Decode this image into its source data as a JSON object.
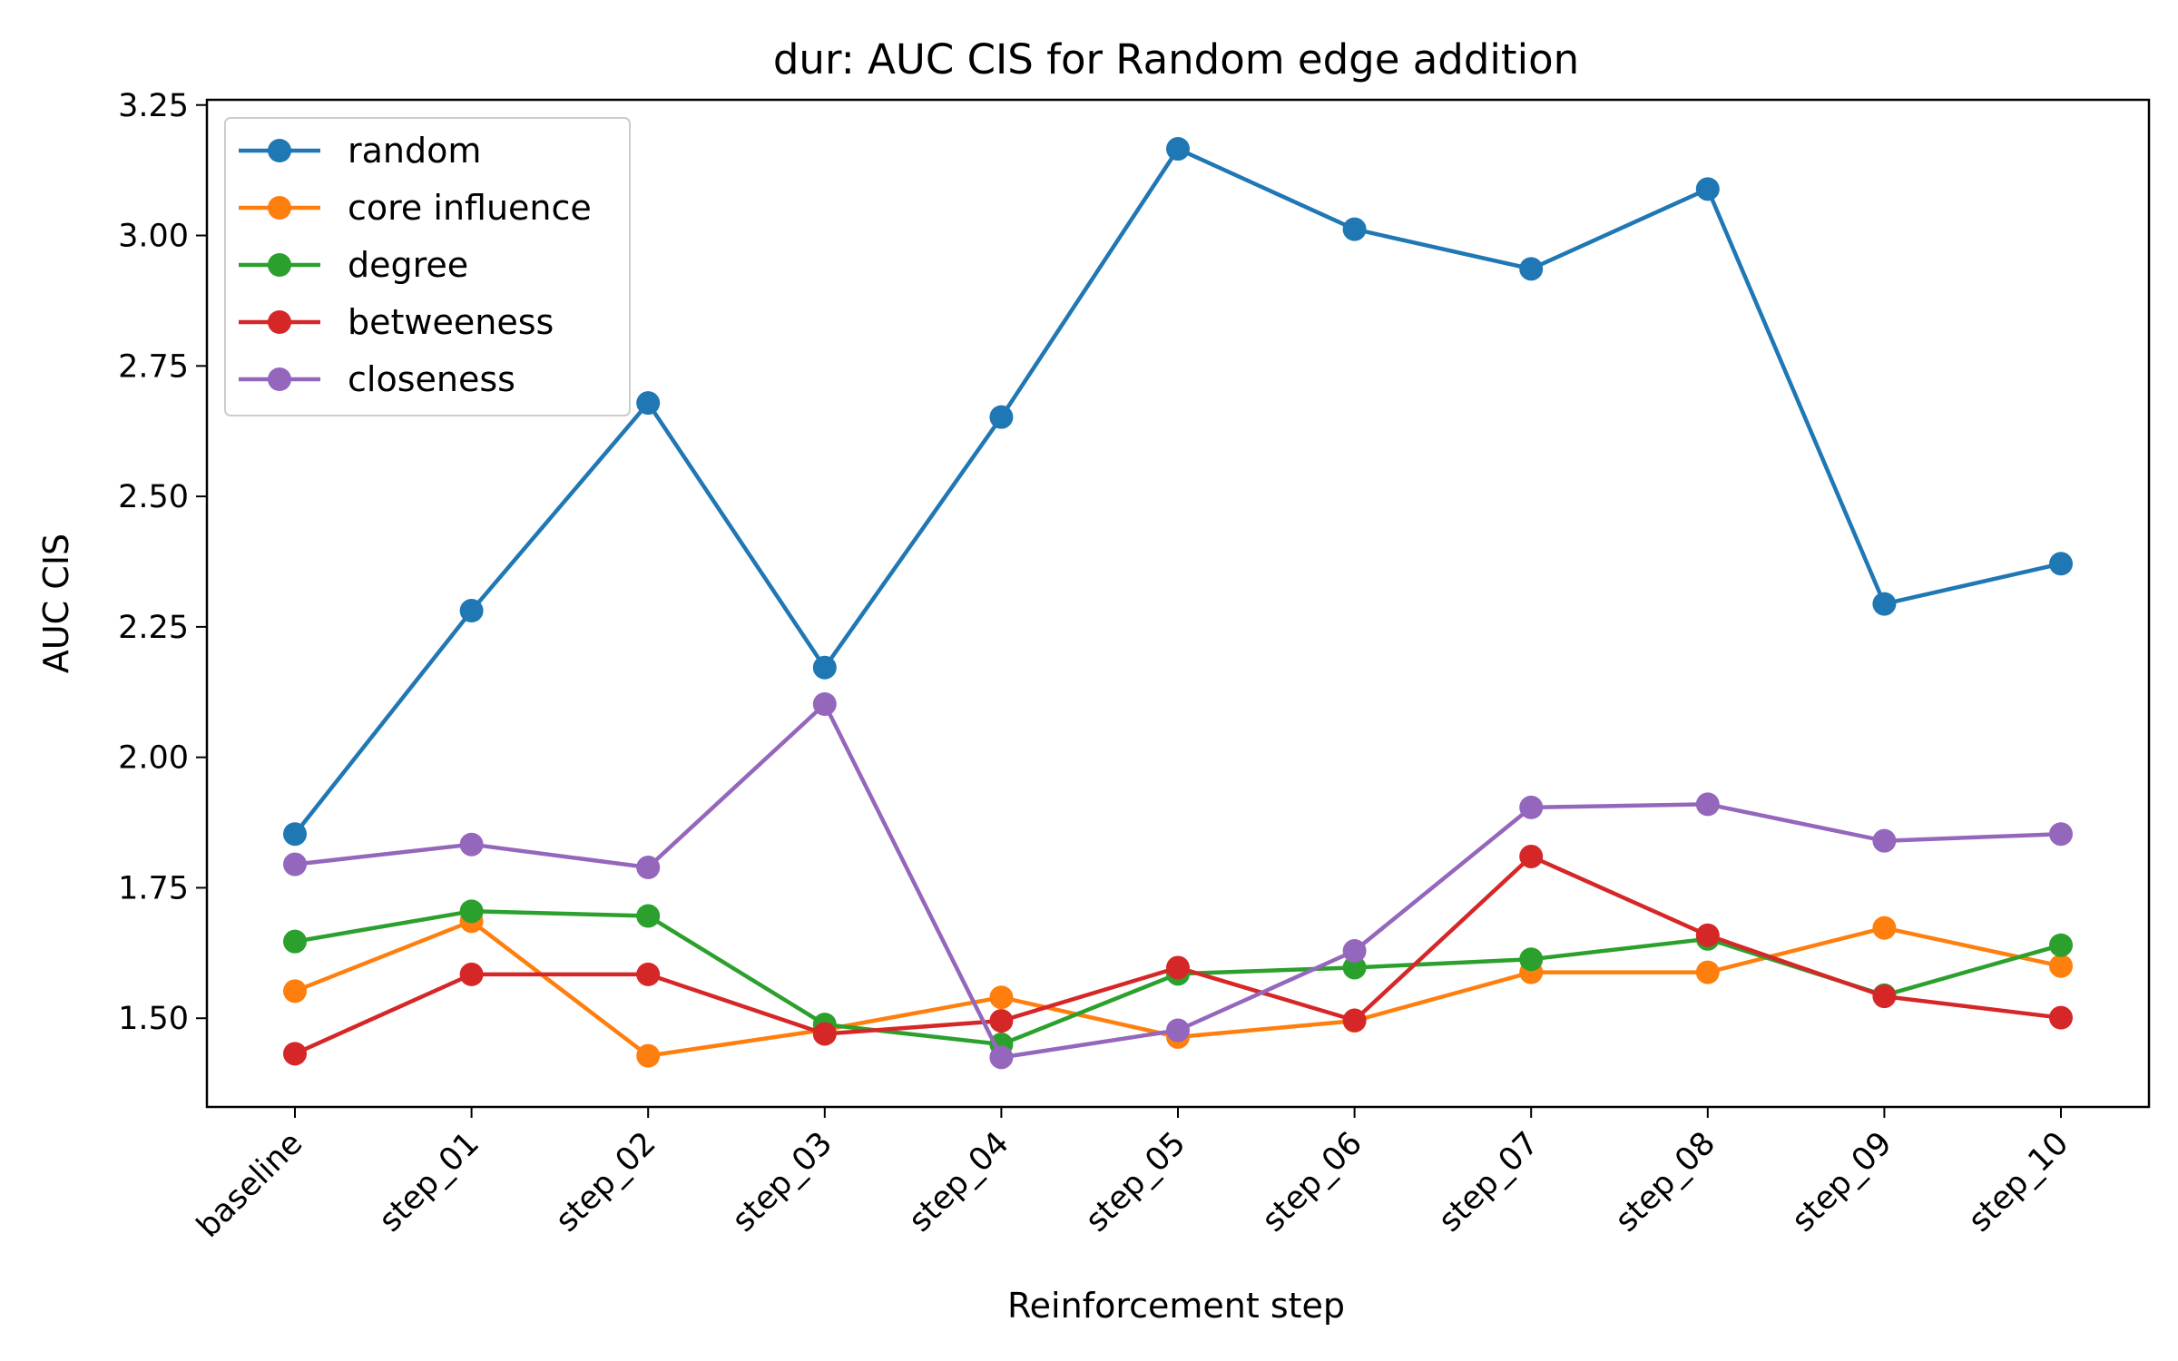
{
  "chart_data": {
    "type": "line",
    "title": "dur: AUC CIS for Random edge addition",
    "xlabel": "Reinforcement step",
    "ylabel": "AUC CIS",
    "categories": [
      "baseline",
      "step_01",
      "step_02",
      "step_03",
      "step_04",
      "step_05",
      "step_06",
      "step_07",
      "step_08",
      "step_09",
      "step_10"
    ],
    "ylim": [
      1.33,
      3.26
    ],
    "yticks": [
      "1.50",
      "1.75",
      "2.00",
      "2.25",
      "2.50",
      "2.75",
      "3.00",
      "3.25"
    ],
    "grid": false,
    "legend_position": "top-left",
    "series": [
      {
        "name": "random",
        "color": "#1f77b4",
        "values": [
          1.853,
          2.281,
          2.679,
          2.172,
          2.652,
          3.166,
          3.012,
          2.936,
          3.089,
          2.294,
          2.371
        ]
      },
      {
        "name": "core influence",
        "color": "#ff7f0e",
        "values": [
          1.552,
          1.686,
          1.428,
          1.478,
          1.54,
          1.464,
          1.495,
          1.588,
          1.588,
          1.673,
          1.6
        ]
      },
      {
        "name": "degree",
        "color": "#2ca02c",
        "values": [
          1.647,
          1.705,
          1.696,
          1.488,
          1.45,
          1.585,
          1.597,
          1.613,
          1.652,
          1.544,
          1.64
        ]
      },
      {
        "name": "betweeness",
        "color": "#d62728",
        "values": [
          1.432,
          1.584,
          1.584,
          1.47,
          1.495,
          1.597,
          1.496,
          1.81,
          1.659,
          1.542,
          1.501
        ]
      },
      {
        "name": "closeness",
        "color": "#9467bd",
        "values": [
          1.795,
          1.833,
          1.789,
          2.102,
          1.425,
          1.477,
          1.629,
          1.904,
          1.91,
          1.84,
          1.853
        ]
      }
    ]
  }
}
